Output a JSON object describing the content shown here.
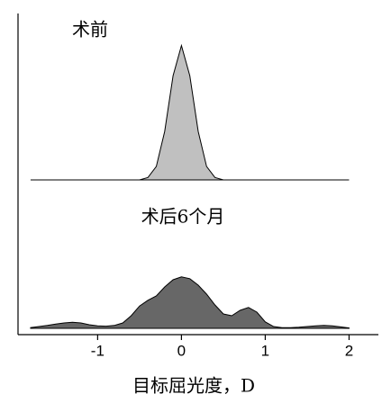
{
  "chart_data": [
    {
      "type": "area",
      "title": "术前",
      "x": [
        -1.8,
        -1.7,
        -1.6,
        -1.5,
        -1.4,
        -1.3,
        -1.2,
        -1.1,
        -1.0,
        -0.9,
        -0.8,
        -0.7,
        -0.6,
        -0.5,
        -0.4,
        -0.3,
        -0.2,
        -0.1,
        0,
        0.1,
        0.2,
        0.3,
        0.4,
        0.5,
        0.6,
        0.7,
        0.8,
        0.9,
        1.0,
        1.1,
        1.2,
        1.3,
        1.4,
        1.5,
        1.6,
        1.7,
        1.8,
        1.9,
        2.0
      ],
      "values": [
        0,
        0,
        0,
        0,
        0,
        0,
        0,
        0,
        0,
        0,
        0,
        0,
        0,
        0,
        0.05,
        0.28,
        1.01,
        2.17,
        2.8,
        2.17,
        1.01,
        0.28,
        0.05,
        0,
        0,
        0,
        0,
        0,
        0,
        0,
        0,
        0,
        0,
        0,
        0,
        0,
        0,
        0,
        0
      ],
      "color": "#c0c0c0",
      "xlim": [
        -1.95,
        2.35
      ],
      "ylim": [
        0,
        3
      ]
    },
    {
      "type": "area",
      "title": "术后6个月",
      "xlabel": "目标屈光度，D",
      "x": [
        -1.8,
        -1.7,
        -1.6,
        -1.5,
        -1.4,
        -1.3,
        -1.2,
        -1.1,
        -1.0,
        -0.9,
        -0.8,
        -0.7,
        -0.6,
        -0.5,
        -0.4,
        -0.3,
        -0.2,
        -0.1,
        0,
        0.1,
        0.2,
        0.3,
        0.4,
        0.5,
        0.6,
        0.7,
        0.8,
        0.9,
        1.0,
        1.1,
        1.2,
        1.3,
        1.4,
        1.5,
        1.6,
        1.7,
        1.8,
        1.9,
        2.0
      ],
      "values": [
        0.02,
        0.05,
        0.08,
        0.12,
        0.15,
        0.17,
        0.15,
        0.1,
        0.07,
        0.06,
        0.08,
        0.15,
        0.35,
        0.62,
        0.78,
        0.9,
        1.15,
        1.35,
        1.43,
        1.38,
        1.2,
        0.95,
        0.65,
        0.4,
        0.35,
        0.5,
        0.58,
        0.45,
        0.18,
        0.05,
        0.02,
        0.02,
        0.03,
        0.05,
        0.07,
        0.08,
        0.07,
        0.04,
        0.01
      ],
      "color": "#676767",
      "xlim": [
        -1.95,
        2.35
      ],
      "ylim": [
        0,
        3
      ],
      "xticks": [
        -1,
        0,
        1,
        2
      ]
    }
  ]
}
